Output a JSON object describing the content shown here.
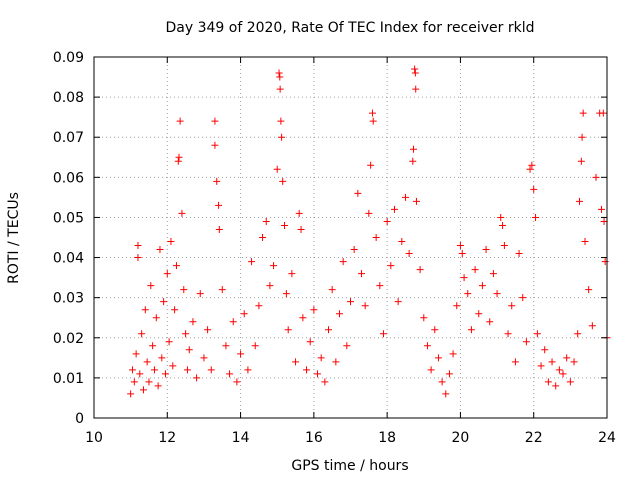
{
  "chart_data": {
    "type": "scatter",
    "title": "Day 349 of 2020, Rate Of TEC Index for receiver rkld",
    "xlabel": "GPS time / hours",
    "ylabel": "ROTI / TECUs",
    "xlim": [
      10,
      24
    ],
    "ylim": [
      0,
      0.09
    ],
    "x_ticks": [
      10,
      12,
      14,
      16,
      18,
      20,
      22,
      24
    ],
    "x_tick_labels": [
      "10",
      "12",
      "14",
      "16",
      "18",
      "20",
      "22",
      "24"
    ],
    "y_ticks": [
      0,
      0.01,
      0.02,
      0.03,
      0.04,
      0.05,
      0.06,
      0.07,
      0.08,
      0.09
    ],
    "y_tick_labels": [
      "0",
      "0.01",
      "0.02",
      "0.03",
      "0.04",
      "0.05",
      "0.06",
      "0.07",
      "0.08",
      "0.09"
    ],
    "grid": true,
    "marker": "+",
    "color": "#ff0000",
    "series": [
      {
        "name": "ROTI",
        "points": [
          [
            11.0,
            0.006
          ],
          [
            11.05,
            0.012
          ],
          [
            11.1,
            0.009
          ],
          [
            11.15,
            0.016
          ],
          [
            11.2,
            0.043
          ],
          [
            11.2,
            0.04
          ],
          [
            11.25,
            0.011
          ],
          [
            11.3,
            0.021
          ],
          [
            11.35,
            0.007
          ],
          [
            11.4,
            0.027
          ],
          [
            11.45,
            0.014
          ],
          [
            11.5,
            0.009
          ],
          [
            11.55,
            0.033
          ],
          [
            11.6,
            0.018
          ],
          [
            11.65,
            0.012
          ],
          [
            11.7,
            0.025
          ],
          [
            11.75,
            0.008
          ],
          [
            11.8,
            0.042
          ],
          [
            11.85,
            0.015
          ],
          [
            11.9,
            0.029
          ],
          [
            11.95,
            0.011
          ],
          [
            12.0,
            0.036
          ],
          [
            12.05,
            0.019
          ],
          [
            12.1,
            0.044
          ],
          [
            12.15,
            0.013
          ],
          [
            12.2,
            0.027
          ],
          [
            12.25,
            0.038
          ],
          [
            12.3,
            0.064
          ],
          [
            12.32,
            0.065
          ],
          [
            12.35,
            0.074
          ],
          [
            12.4,
            0.051
          ],
          [
            12.45,
            0.032
          ],
          [
            12.5,
            0.021
          ],
          [
            12.55,
            0.012
          ],
          [
            12.6,
            0.017
          ],
          [
            12.7,
            0.024
          ],
          [
            12.8,
            0.01
          ],
          [
            12.9,
            0.031
          ],
          [
            13.0,
            0.015
          ],
          [
            13.1,
            0.022
          ],
          [
            13.2,
            0.012
          ],
          [
            13.3,
            0.074
          ],
          [
            13.3,
            0.068
          ],
          [
            13.35,
            0.059
          ],
          [
            13.4,
            0.053
          ],
          [
            13.42,
            0.047
          ],
          [
            13.5,
            0.032
          ],
          [
            13.6,
            0.018
          ],
          [
            13.7,
            0.011
          ],
          [
            13.8,
            0.024
          ],
          [
            13.9,
            0.009
          ],
          [
            14.0,
            0.016
          ],
          [
            14.1,
            0.026
          ],
          [
            14.2,
            0.012
          ],
          [
            14.3,
            0.039
          ],
          [
            14.4,
            0.018
          ],
          [
            14.5,
            0.028
          ],
          [
            14.6,
            0.045
          ],
          [
            14.7,
            0.049
          ],
          [
            14.8,
            0.033
          ],
          [
            14.9,
            0.038
          ],
          [
            15.0,
            0.062
          ],
          [
            15.05,
            0.086
          ],
          [
            15.07,
            0.085
          ],
          [
            15.08,
            0.082
          ],
          [
            15.1,
            0.074
          ],
          [
            15.12,
            0.07
          ],
          [
            15.15,
            0.059
          ],
          [
            15.2,
            0.048
          ],
          [
            15.25,
            0.031
          ],
          [
            15.3,
            0.022
          ],
          [
            15.4,
            0.036
          ],
          [
            15.5,
            0.014
          ],
          [
            15.6,
            0.051
          ],
          [
            15.65,
            0.047
          ],
          [
            15.7,
            0.025
          ],
          [
            15.8,
            0.012
          ],
          [
            15.9,
            0.019
          ],
          [
            16.0,
            0.027
          ],
          [
            16.1,
            0.011
          ],
          [
            16.2,
            0.015
          ],
          [
            16.3,
            0.009
          ],
          [
            16.4,
            0.022
          ],
          [
            16.5,
            0.032
          ],
          [
            16.6,
            0.014
          ],
          [
            16.7,
            0.026
          ],
          [
            16.8,
            0.039
          ],
          [
            16.9,
            0.018
          ],
          [
            17.0,
            0.029
          ],
          [
            17.1,
            0.042
          ],
          [
            17.2,
            0.056
          ],
          [
            17.3,
            0.036
          ],
          [
            17.4,
            0.028
          ],
          [
            17.5,
            0.051
          ],
          [
            17.55,
            0.063
          ],
          [
            17.6,
            0.076
          ],
          [
            17.62,
            0.074
          ],
          [
            17.7,
            0.045
          ],
          [
            17.8,
            0.033
          ],
          [
            17.9,
            0.021
          ],
          [
            18.0,
            0.049
          ],
          [
            18.1,
            0.038
          ],
          [
            18.2,
            0.052
          ],
          [
            18.3,
            0.029
          ],
          [
            18.4,
            0.044
          ],
          [
            18.5,
            0.055
          ],
          [
            18.6,
            0.041
          ],
          [
            18.7,
            0.064
          ],
          [
            18.72,
            0.067
          ],
          [
            18.75,
            0.087
          ],
          [
            18.77,
            0.086
          ],
          [
            18.78,
            0.082
          ],
          [
            18.8,
            0.054
          ],
          [
            18.9,
            0.037
          ],
          [
            19.0,
            0.025
          ],
          [
            19.1,
            0.018
          ],
          [
            19.2,
            0.012
          ],
          [
            19.3,
            0.022
          ],
          [
            19.4,
            0.015
          ],
          [
            19.5,
            0.009
          ],
          [
            19.6,
            0.006
          ],
          [
            19.7,
            0.011
          ],
          [
            19.8,
            0.016
          ],
          [
            19.9,
            0.028
          ],
          [
            20.0,
            0.043
          ],
          [
            20.05,
            0.041
          ],
          [
            20.1,
            0.035
          ],
          [
            20.2,
            0.031
          ],
          [
            20.3,
            0.022
          ],
          [
            20.4,
            0.037
          ],
          [
            20.5,
            0.026
          ],
          [
            20.6,
            0.033
          ],
          [
            20.7,
            0.042
          ],
          [
            20.8,
            0.024
          ],
          [
            20.9,
            0.036
          ],
          [
            21.0,
            0.031
          ],
          [
            21.1,
            0.05
          ],
          [
            21.15,
            0.048
          ],
          [
            21.2,
            0.043
          ],
          [
            21.3,
            0.021
          ],
          [
            21.4,
            0.028
          ],
          [
            21.5,
            0.014
          ],
          [
            21.6,
            0.041
          ],
          [
            21.7,
            0.03
          ],
          [
            21.8,
            0.019
          ],
          [
            21.9,
            0.062
          ],
          [
            21.95,
            0.063
          ],
          [
            22.0,
            0.057
          ],
          [
            22.05,
            0.05
          ],
          [
            22.1,
            0.021
          ],
          [
            22.2,
            0.013
          ],
          [
            22.3,
            0.017
          ],
          [
            22.4,
            0.009
          ],
          [
            22.5,
            0.014
          ],
          [
            22.6,
            0.008
          ],
          [
            22.7,
            0.012
          ],
          [
            22.8,
            0.011
          ],
          [
            22.9,
            0.015
          ],
          [
            23.0,
            0.009
          ],
          [
            23.1,
            0.014
          ],
          [
            23.2,
            0.021
          ],
          [
            23.25,
            0.054
          ],
          [
            23.3,
            0.064
          ],
          [
            23.32,
            0.07
          ],
          [
            23.35,
            0.076
          ],
          [
            23.4,
            0.044
          ],
          [
            23.5,
            0.032
          ],
          [
            23.6,
            0.023
          ],
          [
            23.7,
            0.06
          ],
          [
            23.8,
            0.076
          ],
          [
            23.85,
            0.052
          ],
          [
            23.9,
            0.076
          ],
          [
            23.92,
            0.049
          ],
          [
            23.95,
            0.039
          ],
          [
            24.0,
            0.02
          ]
        ]
      }
    ]
  }
}
